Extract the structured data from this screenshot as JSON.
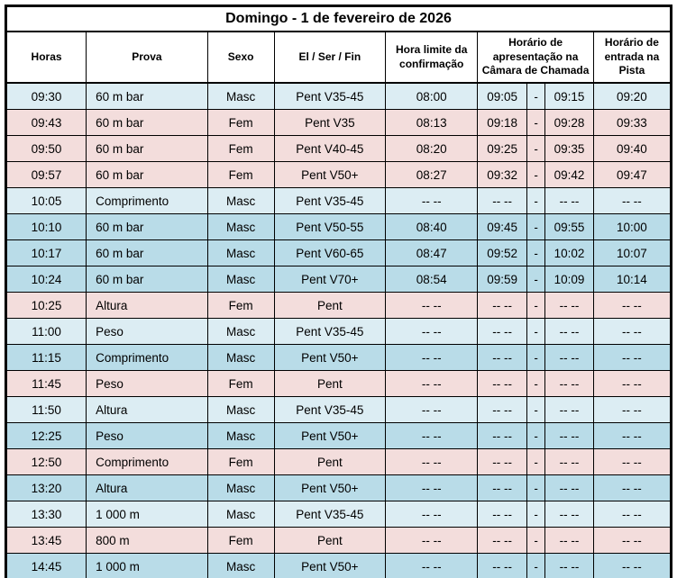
{
  "title": "Domingo - 1 de fevereiro de 2026",
  "columns": {
    "horas": "Horas",
    "prova": "Prova",
    "sexo": "Sexo",
    "el_ser_fin": "El / Ser / Fin",
    "hora_limite": "Hora limite da confirmação",
    "camara": "Horário de apresentação na Câmara de Chamada",
    "pista": "Horário de entrada na Pista"
  },
  "colors": {
    "row_light_blue": "#dcedf3",
    "row_medium_blue": "#b9dce8",
    "row_pink": "#f3dddc",
    "border": "#000000",
    "text": "#000000",
    "header_background": "#ffffff"
  },
  "empty_value": "-- --",
  "rows": [
    {
      "horas": "09:30",
      "prova": "60 m bar",
      "sexo": "Masc",
      "el_ser_fin": "Pent V35-45",
      "hora_limite": "08:00",
      "camara_inicio": "09:05",
      "sep": "-",
      "camara_fim": "09:15",
      "pista": "09:20",
      "tone": "light-blue"
    },
    {
      "horas": "09:43",
      "prova": "60 m bar",
      "sexo": "Fem",
      "el_ser_fin": "Pent V35",
      "hora_limite": "08:13",
      "camara_inicio": "09:18",
      "sep": "-",
      "camara_fim": "09:28",
      "pista": "09:33",
      "tone": "pink"
    },
    {
      "horas": "09:50",
      "prova": "60 m bar",
      "sexo": "Fem",
      "el_ser_fin": "Pent V40-45",
      "hora_limite": "08:20",
      "camara_inicio": "09:25",
      "sep": "-",
      "camara_fim": "09:35",
      "pista": "09:40",
      "tone": "pink"
    },
    {
      "horas": "09:57",
      "prova": "60 m bar",
      "sexo": "Fem",
      "el_ser_fin": "Pent V50+",
      "hora_limite": "08:27",
      "camara_inicio": "09:32",
      "sep": "-",
      "camara_fim": "09:42",
      "pista": "09:47",
      "tone": "pink"
    },
    {
      "horas": "10:05",
      "prova": "Comprimento",
      "sexo": "Masc",
      "el_ser_fin": "Pent V35-45",
      "hora_limite": "-- --",
      "camara_inicio": "-- --",
      "sep": "-",
      "camara_fim": "-- --",
      "pista": "-- --",
      "tone": "light-blue"
    },
    {
      "horas": "10:10",
      "prova": "60 m bar",
      "sexo": "Masc",
      "el_ser_fin": "Pent V50-55",
      "hora_limite": "08:40",
      "camara_inicio": "09:45",
      "sep": "-",
      "camara_fim": "09:55",
      "pista": "10:00",
      "tone": "medium-blue"
    },
    {
      "horas": "10:17",
      "prova": "60 m bar",
      "sexo": "Masc",
      "el_ser_fin": "Pent V60-65",
      "hora_limite": "08:47",
      "camara_inicio": "09:52",
      "sep": "-",
      "camara_fim": "10:02",
      "pista": "10:07",
      "tone": "medium-blue"
    },
    {
      "horas": "10:24",
      "prova": "60 m bar",
      "sexo": "Masc",
      "el_ser_fin": "Pent V70+",
      "hora_limite": "08:54",
      "camara_inicio": "09:59",
      "sep": "-",
      "camara_fim": "10:09",
      "pista": "10:14",
      "tone": "medium-blue"
    },
    {
      "horas": "10:25",
      "prova": "Altura",
      "sexo": "Fem",
      "el_ser_fin": "Pent",
      "hora_limite": "-- --",
      "camara_inicio": "-- --",
      "sep": "-",
      "camara_fim": "-- --",
      "pista": "-- --",
      "tone": "pink"
    },
    {
      "horas": "11:00",
      "prova": "Peso",
      "sexo": "Masc",
      "el_ser_fin": "Pent V35-45",
      "hora_limite": "-- --",
      "camara_inicio": "-- --",
      "sep": "-",
      "camara_fim": "-- --",
      "pista": "-- --",
      "tone": "light-blue"
    },
    {
      "horas": "11:15",
      "prova": "Comprimento",
      "sexo": "Masc",
      "el_ser_fin": "Pent V50+",
      "hora_limite": "-- --",
      "camara_inicio": "-- --",
      "sep": "-",
      "camara_fim": "-- --",
      "pista": "-- --",
      "tone": "medium-blue"
    },
    {
      "horas": "11:45",
      "prova": "Peso",
      "sexo": "Fem",
      "el_ser_fin": "Pent",
      "hora_limite": "-- --",
      "camara_inicio": "-- --",
      "sep": "-",
      "camara_fim": "-- --",
      "pista": "-- --",
      "tone": "pink"
    },
    {
      "horas": "11:50",
      "prova": "Altura",
      "sexo": "Masc",
      "el_ser_fin": "Pent V35-45",
      "hora_limite": "-- --",
      "camara_inicio": "-- --",
      "sep": "-",
      "camara_fim": "-- --",
      "pista": "-- --",
      "tone": "light-blue"
    },
    {
      "horas": "12:25",
      "prova": "Peso",
      "sexo": "Masc",
      "el_ser_fin": "Pent V50+",
      "hora_limite": "-- --",
      "camara_inicio": "-- --",
      "sep": "-",
      "camara_fim": "-- --",
      "pista": "-- --",
      "tone": "medium-blue"
    },
    {
      "horas": "12:50",
      "prova": "Comprimento",
      "sexo": "Fem",
      "el_ser_fin": "Pent",
      "hora_limite": "-- --",
      "camara_inicio": "-- --",
      "sep": "-",
      "camara_fim": "-- --",
      "pista": "-- --",
      "tone": "pink"
    },
    {
      "horas": "13:20",
      "prova": "Altura",
      "sexo": "Masc",
      "el_ser_fin": "Pent V50+",
      "hora_limite": "-- --",
      "camara_inicio": "-- --",
      "sep": "-",
      "camara_fim": "-- --",
      "pista": "-- --",
      "tone": "medium-blue"
    },
    {
      "horas": "13:30",
      "prova": "1 000 m",
      "sexo": "Masc",
      "el_ser_fin": "Pent V35-45",
      "hora_limite": "-- --",
      "camara_inicio": "-- --",
      "sep": "-",
      "camara_fim": "-- --",
      "pista": "-- --",
      "tone": "light-blue"
    },
    {
      "horas": "13:45",
      "prova": "800 m",
      "sexo": "Fem",
      "el_ser_fin": "Pent",
      "hora_limite": "-- --",
      "camara_inicio": "-- --",
      "sep": "-",
      "camara_fim": "-- --",
      "pista": "-- --",
      "tone": "pink"
    },
    {
      "horas": "14:45",
      "prova": "1 000 m",
      "sexo": "Masc",
      "el_ser_fin": "Pent V50+",
      "hora_limite": "-- --",
      "camara_inicio": "-- --",
      "sep": "-",
      "camara_fim": "-- --",
      "pista": "-- --",
      "tone": "medium-blue"
    }
  ]
}
